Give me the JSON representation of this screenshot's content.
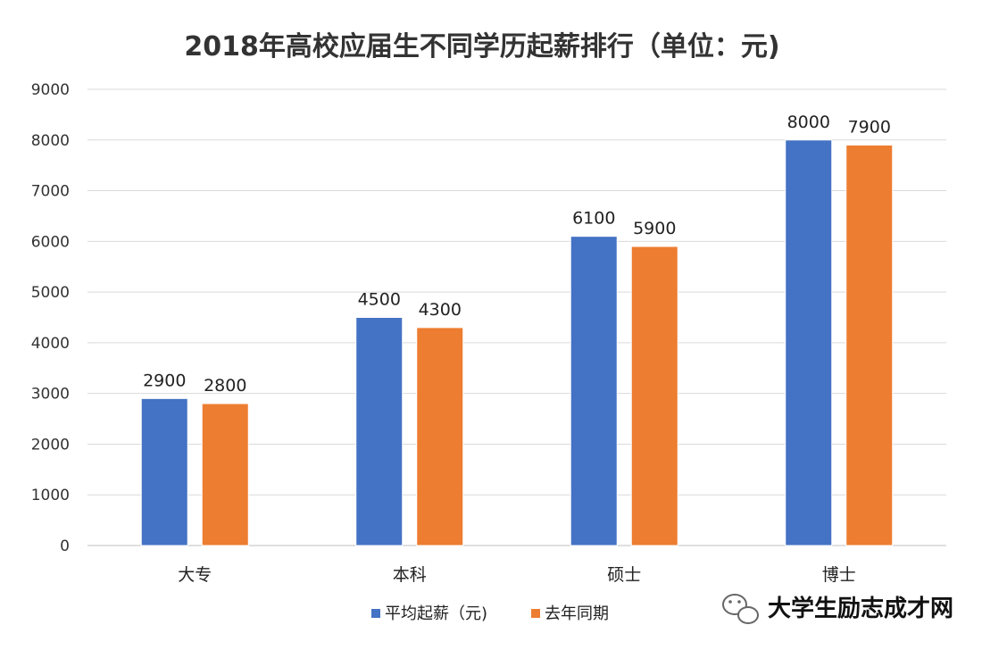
{
  "chart_data": {
    "type": "bar",
    "title": "2018年高校应届生不同学历起薪排行（单位：元)",
    "xlabel": "",
    "ylabel": "",
    "categories": [
      "大专",
      "本科",
      "硕士",
      "博士"
    ],
    "series": [
      {
        "name": "平均起薪（元)",
        "color": "#4472C4",
        "values": [
          2900,
          4500,
          6100,
          8000
        ]
      },
      {
        "name": "去年同期",
        "color": "#ED7D31",
        "values": [
          2800,
          4300,
          5900,
          7900
        ]
      }
    ],
    "ylim": [
      0,
      9000
    ],
    "yticks": [
      0,
      1000,
      2000,
      3000,
      4000,
      5000,
      6000,
      7000,
      8000,
      9000
    ],
    "grid": true,
    "legend_position": "bottom",
    "data_labels": true
  },
  "watermark": {
    "text": "大学生励志成才网",
    "icon": "wechat-icon"
  }
}
